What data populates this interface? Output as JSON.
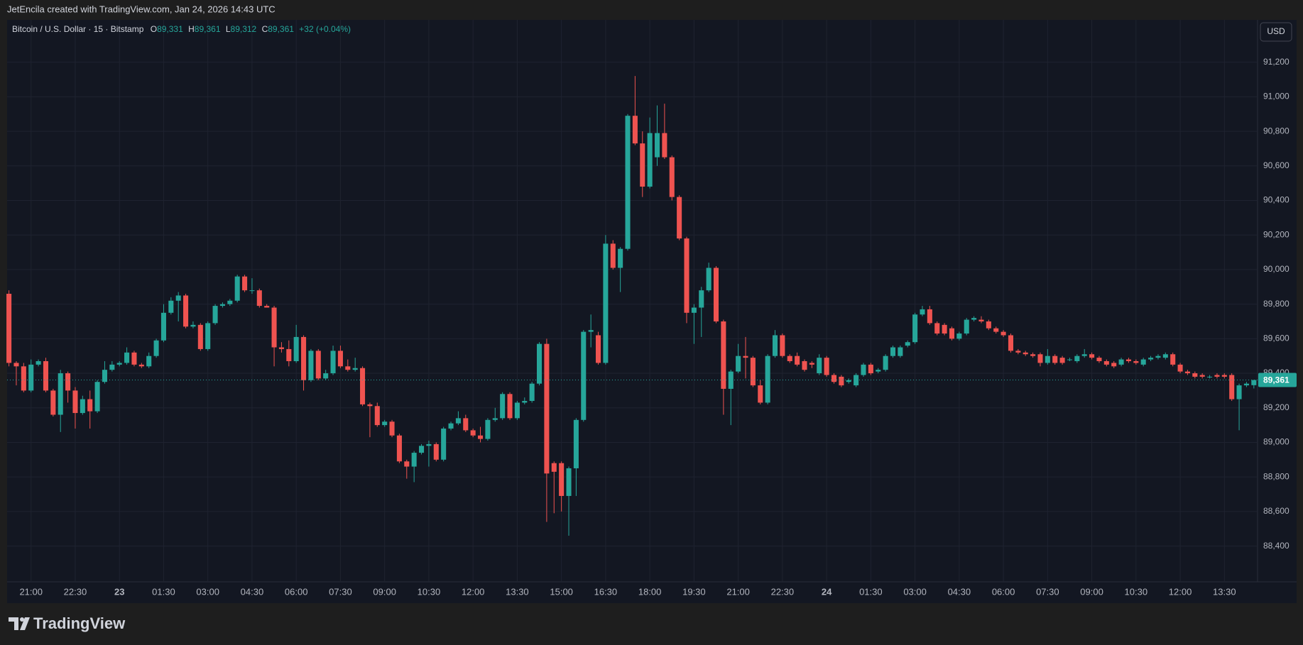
{
  "header": {
    "credit": "JetEncila created with TradingView.com, Jan 24, 2026 14:43 UTC"
  },
  "legend": {
    "symbol": "Bitcoin / U.S. Dollar · 15 · Bitstamp",
    "o_label": "O",
    "o": "89,331",
    "h_label": "H",
    "h": "89,361",
    "l_label": "L",
    "l": "89,312",
    "c_label": "C",
    "c": "89,361",
    "change": "+32 (+0.04%)"
  },
  "currency": "USD",
  "brand": "TradingView",
  "chart_data": {
    "type": "candlestick",
    "up_color": "#26a69a",
    "down_color": "#ef5350",
    "grid": true,
    "xlim": [
      -0.25,
      169.5
    ],
    "xticks": [
      {
        "value": 3,
        "label": "21:00"
      },
      {
        "value": 9,
        "label": "22:30"
      },
      {
        "value": 15,
        "label": "23"
      },
      {
        "value": 21,
        "label": "01:30"
      },
      {
        "value": 27,
        "label": "03:00"
      },
      {
        "value": 33,
        "label": "04:30"
      },
      {
        "value": 39,
        "label": "06:00"
      },
      {
        "value": 45,
        "label": "07:30"
      },
      {
        "value": 51,
        "label": "09:00"
      },
      {
        "value": 57,
        "label": "10:30"
      },
      {
        "value": 63,
        "label": "12:00"
      },
      {
        "value": 69,
        "label": "13:30"
      },
      {
        "value": 75,
        "label": "15:00"
      },
      {
        "value": 81,
        "label": "16:30"
      },
      {
        "value": 87,
        "label": "18:00"
      },
      {
        "value": 93,
        "label": "19:30"
      },
      {
        "value": 99,
        "label": "21:00"
      },
      {
        "value": 105,
        "label": "22:30"
      },
      {
        "value": 111,
        "label": "24"
      },
      {
        "value": 117,
        "label": "01:30"
      },
      {
        "value": 123,
        "label": "03:00"
      },
      {
        "value": 129,
        "label": "04:30"
      },
      {
        "value": 135,
        "label": "06:00"
      },
      {
        "value": 141,
        "label": "07:30"
      },
      {
        "value": 147,
        "label": "09:00"
      },
      {
        "value": 153,
        "label": "10:30"
      },
      {
        "value": 159,
        "label": "12:00"
      },
      {
        "value": 165,
        "label": "13:30"
      }
    ],
    "ylim": [
      88193,
      91445
    ],
    "yticks": [
      {
        "value": 88400,
        "label": "88,400"
      },
      {
        "value": 88600,
        "label": "88,600"
      },
      {
        "value": 88800,
        "label": "88,800"
      },
      {
        "value": 89000,
        "label": "89,000"
      },
      {
        "value": 89200,
        "label": "89,200"
      },
      {
        "value": 89400,
        "label": "89,400"
      },
      {
        "value": 89600,
        "label": "89,600"
      },
      {
        "value": 89800,
        "label": "89,800"
      },
      {
        "value": 90000,
        "label": "90,000"
      },
      {
        "value": 90200,
        "label": "90,200"
      },
      {
        "value": 90400,
        "label": "90,400"
      },
      {
        "value": 90600,
        "label": "90,600"
      },
      {
        "value": 90800,
        "label": "90,800"
      },
      {
        "value": 91000,
        "label": "91,000"
      },
      {
        "value": 91200,
        "label": "91,200"
      }
    ],
    "last_price": {
      "value": 89361,
      "label": "89,361"
    },
    "open": [
      89860,
      89460,
      89440,
      89300,
      89450,
      89470,
      89300,
      89160,
      89400,
      89300,
      89170,
      89250,
      89180,
      89350,
      89420,
      89450,
      89460,
      89520,
      89450,
      89440,
      89500,
      89590,
      89750,
      89820,
      89850,
      89670,
      89680,
      89540,
      89690,
      89790,
      89800,
      89820,
      89960,
      89880,
      89880,
      89790,
      89780,
      89550,
      89540,
      89470,
      89610,
      89360,
      89530,
      89370,
      89400,
      89530,
      89440,
      89420,
      89430,
      89220,
      89210,
      89100,
      89120,
      89040,
      88890,
      88860,
      88940,
      88980,
      88990,
      88900,
      89080,
      89110,
      89140,
      89070,
      89040,
      89020,
      89130,
      89140,
      89280,
      89140,
      89230,
      89240,
      89340,
      89570,
      88880,
      88880,
      88690,
      88850,
      89130,
      89640,
      89620,
      89460,
      90150,
      90010,
      90120,
      90890,
      90730,
      90480,
      90650,
      90790,
      90650,
      90420,
      90180,
      89750,
      89780,
      89880,
      90010,
      89700,
      89310,
      89410,
      89500,
      89490,
      89330,
      89230,
      89500,
      89620,
      89500,
      89500,
      89470,
      89460,
      89400,
      89490,
      89390,
      89380,
      89350,
      89330,
      89390,
      89450,
      89410,
      89420,
      89500,
      89500,
      89560,
      89580,
      89740,
      89770,
      89690,
      89680,
      89660,
      89600,
      89630,
      89710,
      89710,
      89700,
      89660,
      89640,
      89620,
      89530,
      89520,
      89510,
      89510,
      89460,
      89500,
      89490,
      89480,
      89470,
      89500,
      89510,
      89490,
      89470,
      89460,
      89450,
      89480,
      89470,
      89450,
      89480,
      89490,
      89490,
      89510,
      89450,
      89410,
      89400,
      89390,
      89380,
      89390,
      89390,
      89390,
      89250,
      89330,
      89331
    ],
    "high": [
      89880,
      89470,
      89460,
      89480,
      89480,
      89490,
      89310,
      89420,
      89410,
      89320,
      89270,
      89300,
      89360,
      89470,
      89470,
      89470,
      89550,
      89530,
      89460,
      89520,
      89600,
      89800,
      89840,
      89870,
      89860,
      89700,
      89690,
      89700,
      89800,
      89810,
      89830,
      89970,
      89970,
      89950,
      89890,
      89800,
      89790,
      89580,
      89590,
      89680,
      89620,
      89540,
      89540,
      89420,
      89560,
      89560,
      89480,
      89490,
      89440,
      89230,
      89230,
      89130,
      89130,
      89050,
      88900,
      88950,
      88990,
      89010,
      89000,
      89090,
      89120,
      89180,
      89160,
      89080,
      89090,
      89140,
      89200,
      89290,
      89290,
      89240,
      89260,
      89350,
      89580,
      89600,
      88890,
      88890,
      88860,
      89140,
      89650,
      89740,
      89640,
      90200,
      90170,
      90130,
      90900,
      91120,
      90800,
      90880,
      90950,
      90960,
      90660,
      90430,
      90190,
      89800,
      89900,
      90040,
      90020,
      89710,
      89420,
      89570,
      89610,
      89500,
      89360,
      89510,
      89650,
      89630,
      89510,
      89520,
      89480,
      89470,
      89510,
      89500,
      89400,
      89390,
      89370,
      89400,
      89460,
      89460,
      89430,
      89510,
      89560,
      89560,
      89590,
      89750,
      89790,
      89790,
      89700,
      89690,
      89670,
      89640,
      89720,
      89730,
      89730,
      89710,
      89670,
      89650,
      89630,
      89540,
      89530,
      89520,
      89520,
      89540,
      89510,
      89500,
      89490,
      89510,
      89540,
      89520,
      89500,
      89480,
      89470,
      89490,
      89490,
      89480,
      89490,
      89500,
      89510,
      89520,
      89520,
      89460,
      89420,
      89410,
      89400,
      89390,
      89400,
      89400,
      89400,
      89340,
      89350,
      89361
    ],
    "low": [
      89440,
      89330,
      89290,
      89290,
      89440,
      89290,
      89150,
      89060,
      89230,
      89080,
      89160,
      89080,
      89170,
      89340,
      89410,
      89440,
      89450,
      89440,
      89430,
      89430,
      89490,
      89580,
      89740,
      89700,
      89660,
      89660,
      89530,
      89530,
      89680,
      89780,
      89790,
      89810,
      89870,
      89860,
      89780,
      89780,
      89440,
      89520,
      89440,
      89460,
      89300,
      89350,
      89360,
      89360,
      89390,
      89430,
      89410,
      89410,
      89210,
      89030,
      89090,
      89090,
      89030,
      88880,
      88790,
      88770,
      88930,
      88860,
      88890,
      88890,
      89070,
      89100,
      89060,
      89030,
      89000,
      89010,
      89120,
      89130,
      89130,
      89130,
      89220,
      89230,
      89330,
      88540,
      88590,
      88600,
      88460,
      88690,
      89120,
      89550,
      89450,
      89450,
      90000,
      89870,
      90110,
      90720,
      90420,
      90470,
      90600,
      90640,
      90400,
      90170,
      89690,
      89570,
      89610,
      89870,
      89690,
      89160,
      89100,
      89400,
      89370,
      89320,
      89220,
      89220,
      89490,
      89490,
      89460,
      89440,
      89410,
      89430,
      89390,
      89380,
      89340,
      89320,
      89340,
      89320,
      89380,
      89390,
      89400,
      89410,
      89490,
      89490,
      89550,
      89570,
      89730,
      89680,
      89620,
      89620,
      89590,
      89590,
      89620,
      89700,
      89690,
      89650,
      89630,
      89610,
      89520,
      89510,
      89500,
      89490,
      89440,
      89450,
      89450,
      89450,
      89470,
      89460,
      89490,
      89480,
      89460,
      89440,
      89430,
      89440,
      89460,
      89450,
      89440,
      89470,
      89480,
      89480,
      89440,
      89400,
      89390,
      89370,
      89370,
      89370,
      89370,
      89370,
      89240,
      89070,
      89320,
      89312
    ],
    "close": [
      89460,
      89440,
      89300,
      89450,
      89470,
      89300,
      89160,
      89400,
      89300,
      89170,
      89250,
      89180,
      89350,
      89420,
      89450,
      89460,
      89520,
      89450,
      89440,
      89500,
      89590,
      89750,
      89820,
      89850,
      89670,
      89680,
      89540,
      89690,
      89790,
      89800,
      89820,
      89960,
      89880,
      89880,
      89790,
      89780,
      89550,
      89540,
      89470,
      89610,
      89360,
      89530,
      89370,
      89400,
      89530,
      89440,
      89420,
      89430,
      89220,
      89210,
      89100,
      89120,
      89040,
      88890,
      88860,
      88940,
      88980,
      88990,
      88900,
      89080,
      89110,
      89140,
      89070,
      89040,
      89020,
      89130,
      89140,
      89280,
      89140,
      89230,
      89240,
      89340,
      89570,
      88820,
      88830,
      88690,
      88850,
      89130,
      89640,
      89650,
      89460,
      90150,
      90010,
      90120,
      90890,
      90730,
      90480,
      90790,
      90790,
      90650,
      90420,
      90180,
      89750,
      89780,
      89880,
      90010,
      89700,
      89310,
      89410,
      89500,
      89490,
      89330,
      89230,
      89500,
      89620,
      89500,
      89470,
      89450,
      89420,
      89450,
      89490,
      89390,
      89350,
      89330,
      89360,
      89390,
      89450,
      89400,
      89420,
      89500,
      89550,
      89550,
      89580,
      89740,
      89770,
      89690,
      89630,
      89630,
      89600,
      89630,
      89710,
      89720,
      89700,
      89660,
      89640,
      89620,
      89530,
      89520,
      89510,
      89500,
      89460,
      89500,
      89460,
      89460,
      89480,
      89500,
      89510,
      89490,
      89470,
      89450,
      89440,
      89480,
      89470,
      89460,
      89480,
      89490,
      89500,
      89510,
      89450,
      89410,
      89400,
      89380,
      89380,
      89380,
      89380,
      89380,
      89250,
      89330,
      89340,
      89361
    ]
  }
}
